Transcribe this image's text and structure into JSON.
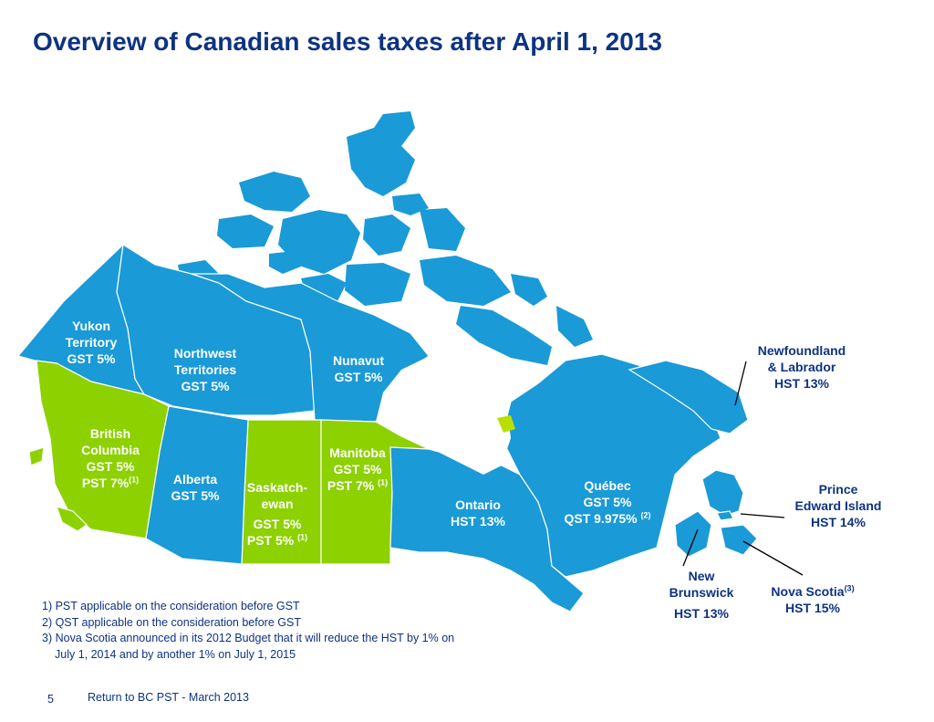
{
  "title": "Overview of Canadian sales taxes after April 1, 2013",
  "colors": {
    "hst_region": "#1a9ad6",
    "pst_region": "#8dd100",
    "title": "#0d3382",
    "island_highlight": "#b7e000"
  },
  "provinces": {
    "yukon": {
      "name": [
        "Yukon",
        "Territory"
      ],
      "tax": "GST 5%"
    },
    "nwt": {
      "name": [
        "Northwest",
        "Territories"
      ],
      "tax": "GST 5%"
    },
    "nunavut": {
      "name": "Nunavut",
      "tax": "GST 5%"
    },
    "bc": {
      "name": [
        "British",
        "Columbia"
      ],
      "tax1": "GST 5%",
      "tax2": "PST 7%",
      "note": "(1)"
    },
    "alberta": {
      "name": "Alberta",
      "tax": "GST 5%"
    },
    "saskatchewan": {
      "name": [
        "Saskatch-",
        "ewan"
      ],
      "tax1": "GST 5%",
      "tax2": "PST 5%",
      "note": "(1)"
    },
    "manitoba": {
      "name": "Manitoba",
      "tax1": "GST 5%",
      "tax2": "PST 7%",
      "note": "(1)"
    },
    "ontario": {
      "name": "Ontario",
      "tax": "HST 13%"
    },
    "quebec": {
      "name": "Québec",
      "tax1": "GST 5%",
      "tax2": "QST 9.975%",
      "note": "(2)"
    },
    "newfoundland": {
      "name": [
        "Newfoundland",
        "& Labrador"
      ],
      "tax": "HST 13%"
    },
    "pei": {
      "name": [
        "Prince",
        "Edward Island"
      ],
      "tax": "HST 14%"
    },
    "new_brunswick": {
      "name": [
        "New",
        "Brunswick"
      ],
      "tax": "HST 13%"
    },
    "nova_scotia": {
      "name": "Nova Scotia",
      "note": "(3)",
      "tax": "HST 15%"
    }
  },
  "notes": [
    "1) PST applicable on the consideration before GST",
    "2) QST applicable on the consideration before GST",
    "3) Nova Scotia announced in its 2012 Budget that it will reduce the HST by 1% on",
    "July 1, 2014 and by another 1% on July 1, 2015"
  ],
  "footer": {
    "page_number": "5",
    "text": "Return to BC PST - March 2013"
  }
}
